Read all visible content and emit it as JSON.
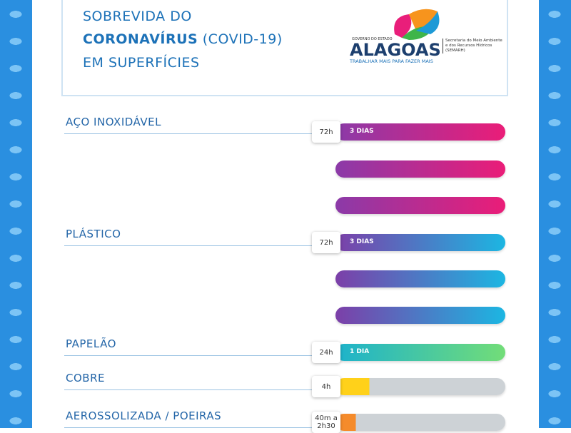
{
  "header": {
    "title_line1": "SOBREVIDA DO",
    "title_bold": "CORONAVÍRUS",
    "title_rest": "(COVID-19)",
    "title_line3": "EM SUPERFÍCIES"
  },
  "logo": {
    "government": "GOVERNO DO ESTADO",
    "state": "ALAGOAS",
    "slogan": "TRABALHAR MAIS PARA FAZER MAIS",
    "secretariat": "Secretaria do Meio Ambiente e dos Recursos Hídricos (SEMARH)"
  },
  "items": [
    {
      "label": "AÇO INOXIDÁVEL",
      "time": "72h",
      "bar_label": "3 DIAS"
    },
    {
      "label": "PLÁSTICO",
      "time": "72h",
      "bar_label": "3 DIAS"
    },
    {
      "label": "PAPELÃO",
      "time": "24h",
      "bar_label": "1 DIA"
    },
    {
      "label": "COBRE",
      "time": "4h"
    },
    {
      "label": "AEROSSOLIZADA / POEIRAS",
      "time": "40m a 2h30"
    }
  ]
}
